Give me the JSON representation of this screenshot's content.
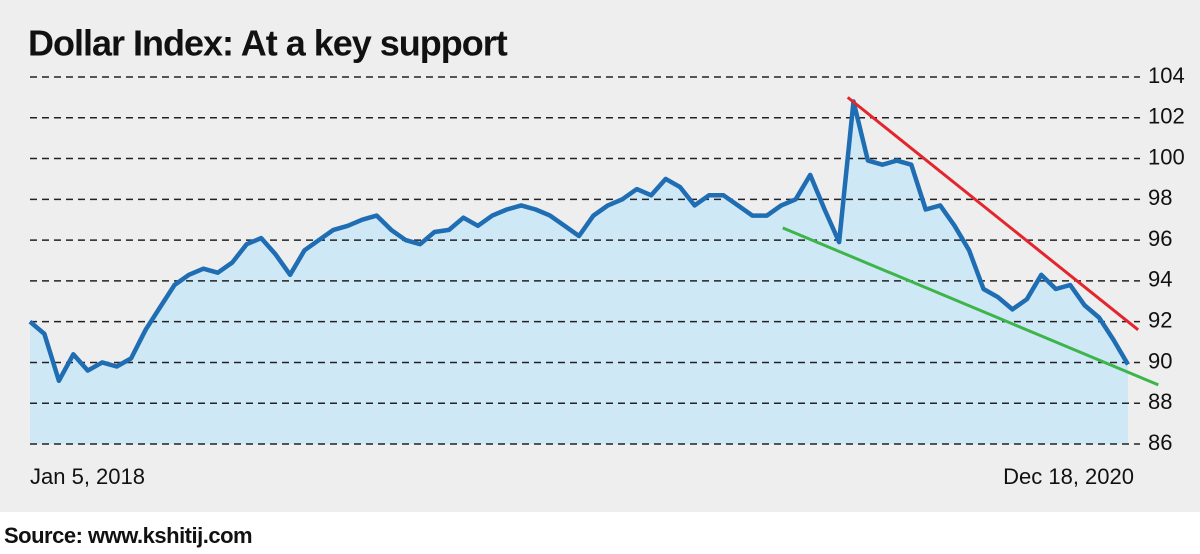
{
  "chart_data": {
    "type": "line",
    "title": "Dollar Index: At a key support",
    "source": "Source: www.kshitij.com",
    "categories": [
      "Jan 5, 2018",
      null,
      null,
      null,
      null,
      null,
      null,
      null,
      null,
      null,
      null,
      null,
      null,
      null,
      null,
      null,
      null,
      null,
      null,
      null,
      null,
      null,
      null,
      null,
      null,
      null,
      null,
      null,
      null,
      null,
      null,
      null,
      null,
      null,
      null,
      null,
      null,
      null,
      null,
      null,
      null,
      null,
      null,
      null,
      null,
      null,
      null,
      null,
      null,
      null,
      null,
      null,
      null,
      null,
      null,
      null,
      null,
      null,
      null,
      null,
      null,
      null,
      null,
      null,
      null,
      null,
      null,
      null,
      null,
      null,
      null,
      null,
      null,
      null,
      null,
      null,
      "Dec 18, 2020"
    ],
    "values": [
      92.0,
      91.4,
      89.1,
      90.4,
      89.6,
      90.0,
      89.8,
      90.2,
      91.6,
      92.7,
      93.8,
      94.3,
      94.6,
      94.4,
      94.9,
      95.8,
      96.1,
      95.3,
      94.3,
      95.5,
      96.0,
      96.5,
      96.7,
      97.0,
      97.2,
      96.5,
      96.0,
      95.8,
      96.4,
      96.5,
      97.1,
      96.7,
      97.2,
      97.5,
      97.7,
      97.5,
      97.2,
      96.7,
      96.2,
      97.2,
      97.7,
      98.0,
      98.5,
      98.2,
      99.0,
      98.6,
      97.7,
      98.2,
      98.2,
      97.7,
      97.2,
      97.2,
      97.7,
      98.0,
      99.2,
      97.5,
      95.9,
      102.8,
      99.9,
      99.7,
      99.9,
      99.7,
      97.5,
      97.7,
      96.7,
      95.5,
      93.6,
      93.2,
      92.6,
      93.1,
      94.3,
      93.6,
      93.8,
      92.8,
      92.2,
      91.1,
      89.9
    ],
    "color": "#1f6db3",
    "fill_color": "#cfe8f6",
    "ylim": [
      86,
      104
    ],
    "yticks": [
      86,
      88,
      90,
      92,
      94,
      96,
      98,
      100,
      102,
      104
    ],
    "grid": true,
    "trendlines": [
      {
        "color": "#e3262d",
        "x": [
          56.6,
          76.7
        ],
        "values": [
          103.0,
          91.6
        ]
      },
      {
        "color": "#3db54a",
        "x": [
          52.1,
          78.1
        ],
        "values": [
          96.6,
          88.9
        ]
      }
    ]
  }
}
